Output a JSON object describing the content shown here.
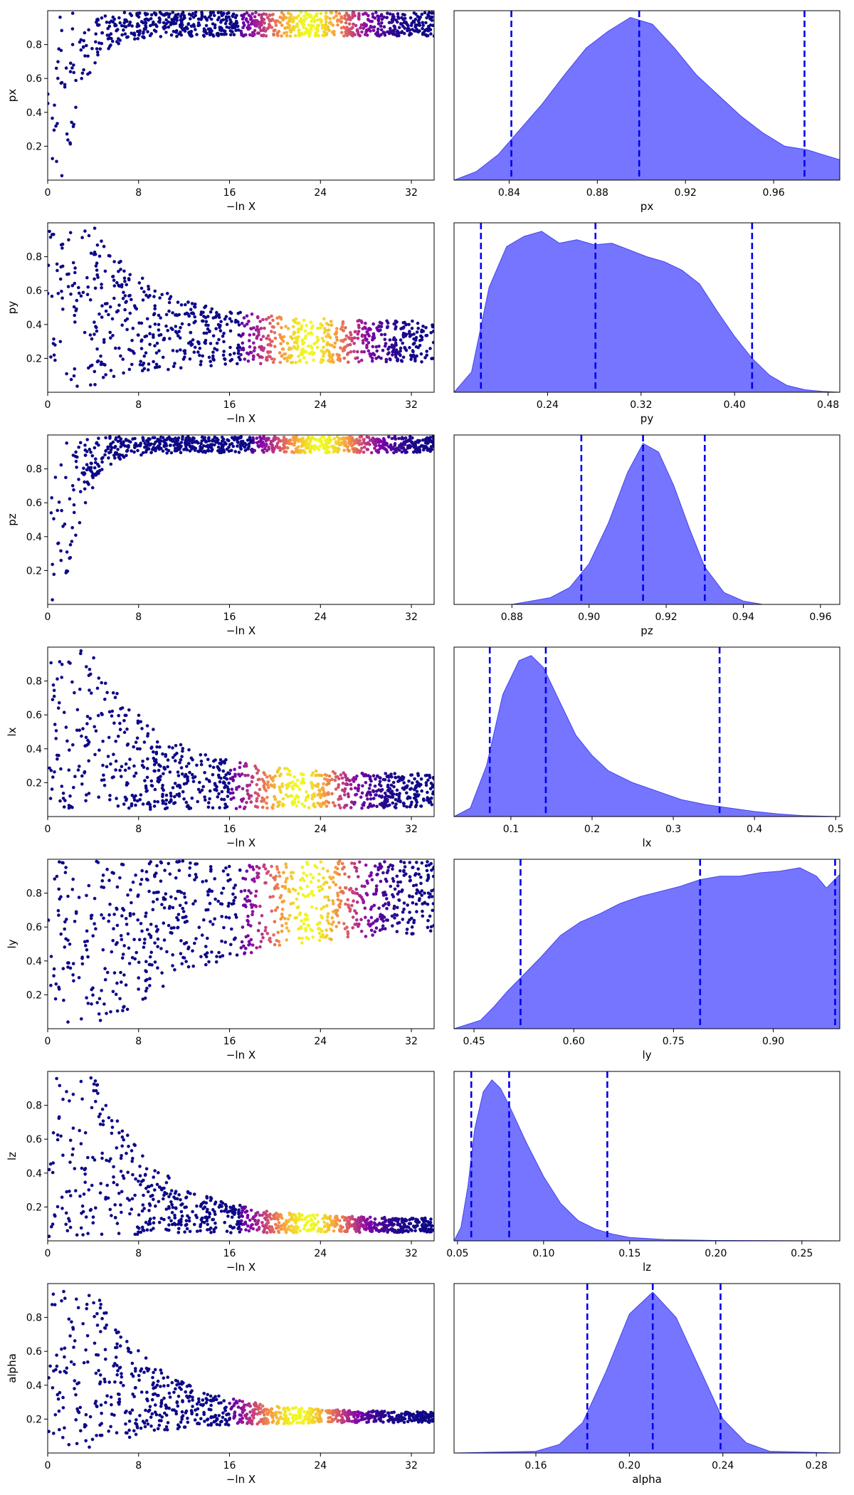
{
  "chart_data": [
    {
      "type": "scatter",
      "panel": "trace",
      "parameter": "px",
      "xlabel": "−ln X",
      "ylabel": "px",
      "xlim": [
        0,
        34
      ],
      "ylim": [
        0,
        1
      ],
      "xticks": [
        "0",
        "8",
        "16",
        "24",
        "32"
      ],
      "yticks": [
        "0.2",
        "0.4",
        "0.6",
        "0.8"
      ],
      "colormap": [
        "#0d0887",
        "#7e03a8",
        "#cc4778",
        "#f89540",
        "#f0f921"
      ],
      "peak_x": 23
    },
    {
      "type": "area",
      "panel": "posterior",
      "parameter": "px",
      "xlabel": "px",
      "xlim": [
        0.815,
        0.99
      ],
      "xticks": [
        "0.84",
        "0.88",
        "0.92",
        "0.96"
      ],
      "fill_color": "#6666ff",
      "quantile_color": "#0000ee",
      "quantiles": [
        0.841,
        0.899,
        0.974
      ],
      "x": [
        0.815,
        0.825,
        0.835,
        0.845,
        0.855,
        0.865,
        0.875,
        0.885,
        0.895,
        0.905,
        0.915,
        0.925,
        0.935,
        0.945,
        0.955,
        0.965,
        0.975,
        0.985,
        0.99
      ],
      "density": [
        0.0,
        0.05,
        0.15,
        0.3,
        0.45,
        0.62,
        0.78,
        0.88,
        0.96,
        0.92,
        0.78,
        0.62,
        0.5,
        0.38,
        0.28,
        0.2,
        0.18,
        0.14,
        0.12
      ]
    },
    {
      "type": "scatter",
      "panel": "trace",
      "parameter": "py",
      "xlabel": "−ln X",
      "ylabel": "py",
      "xlim": [
        0,
        34
      ],
      "ylim": [
        0,
        1
      ],
      "xticks": [
        "0",
        "8",
        "16",
        "24",
        "32"
      ],
      "yticks": [
        "0.2",
        "0.4",
        "0.6",
        "0.8"
      ],
      "peak_x": 23
    },
    {
      "type": "area",
      "panel": "posterior",
      "parameter": "py",
      "xlabel": "py",
      "xlim": [
        0.16,
        0.49
      ],
      "xticks": [
        "0.24",
        "0.32",
        "0.40",
        "0.48"
      ],
      "quantiles": [
        0.183,
        0.281,
        0.415
      ],
      "x": [
        0.16,
        0.175,
        0.19,
        0.205,
        0.22,
        0.235,
        0.25,
        0.265,
        0.28,
        0.295,
        0.31,
        0.325,
        0.34,
        0.355,
        0.37,
        0.385,
        0.4,
        0.415,
        0.43,
        0.445,
        0.46,
        0.475,
        0.49
      ],
      "density": [
        0.0,
        0.12,
        0.62,
        0.86,
        0.92,
        0.95,
        0.88,
        0.9,
        0.87,
        0.88,
        0.84,
        0.8,
        0.77,
        0.72,
        0.64,
        0.48,
        0.33,
        0.2,
        0.1,
        0.04,
        0.015,
        0.005,
        0.0
      ]
    },
    {
      "type": "scatter",
      "panel": "trace",
      "parameter": "pz",
      "xlabel": "−ln X",
      "ylabel": "pz",
      "xlim": [
        0,
        34
      ],
      "ylim": [
        0,
        1
      ],
      "xticks": [
        "0",
        "8",
        "16",
        "24",
        "32"
      ],
      "yticks": [
        "0.2",
        "0.4",
        "0.6",
        "0.8"
      ],
      "peak_x": 24
    },
    {
      "type": "area",
      "panel": "posterior",
      "parameter": "pz",
      "xlabel": "pz",
      "xlim": [
        0.865,
        0.965
      ],
      "xticks": [
        "0.88",
        "0.90",
        "0.92",
        "0.94",
        "0.96"
      ],
      "quantiles": [
        0.898,
        0.914,
        0.93
      ],
      "x": [
        0.865,
        0.88,
        0.89,
        0.895,
        0.9,
        0.905,
        0.91,
        0.914,
        0.918,
        0.922,
        0.926,
        0.93,
        0.935,
        0.94,
        0.945,
        0.965
      ],
      "density": [
        0.0,
        0.0,
        0.04,
        0.1,
        0.24,
        0.48,
        0.78,
        0.95,
        0.9,
        0.7,
        0.45,
        0.22,
        0.07,
        0.02,
        0.0,
        0.0
      ]
    },
    {
      "type": "scatter",
      "panel": "trace",
      "parameter": "lx",
      "xlabel": "−ln X",
      "ylabel": "lx",
      "xlim": [
        0,
        34
      ],
      "ylim": [
        0,
        1
      ],
      "xticks": [
        "0",
        "8",
        "16",
        "24",
        "32"
      ],
      "yticks": [
        "0.2",
        "0.4",
        "0.6",
        "0.8"
      ],
      "peak_x": 22
    },
    {
      "type": "area",
      "panel": "posterior",
      "parameter": "lx",
      "xlabel": "lx",
      "xlim": [
        0.03,
        0.505
      ],
      "xticks": [
        "0.1",
        "0.2",
        "0.3",
        "0.4",
        "0.5"
      ],
      "quantiles": [
        0.074,
        0.143,
        0.357
      ],
      "x": [
        0.03,
        0.05,
        0.07,
        0.09,
        0.11,
        0.125,
        0.14,
        0.16,
        0.18,
        0.2,
        0.22,
        0.25,
        0.28,
        0.31,
        0.34,
        0.37,
        0.4,
        0.43,
        0.46,
        0.505
      ],
      "density": [
        0.0,
        0.05,
        0.3,
        0.72,
        0.92,
        0.95,
        0.88,
        0.68,
        0.48,
        0.36,
        0.27,
        0.2,
        0.15,
        0.1,
        0.07,
        0.05,
        0.03,
        0.015,
        0.005,
        0.0
      ]
    },
    {
      "type": "scatter",
      "panel": "trace",
      "parameter": "ly",
      "xlabel": "−ln X",
      "ylabel": "ly",
      "xlim": [
        0,
        34
      ],
      "ylim": [
        0,
        1
      ],
      "xticks": [
        "0",
        "8",
        "16",
        "24",
        "32"
      ],
      "yticks": [
        "0.2",
        "0.4",
        "0.6",
        "0.8"
      ],
      "peak_x": 23
    },
    {
      "type": "area",
      "panel": "posterior",
      "parameter": "ly",
      "xlabel": "ly",
      "xlim": [
        0.42,
        1.0
      ],
      "xticks": [
        "0.45",
        "0.60",
        "0.75",
        "0.90"
      ],
      "quantiles": [
        0.52,
        0.79,
        0.993
      ],
      "x": [
        0.42,
        0.46,
        0.48,
        0.5,
        0.52,
        0.55,
        0.58,
        0.61,
        0.64,
        0.67,
        0.7,
        0.73,
        0.76,
        0.79,
        0.82,
        0.85,
        0.88,
        0.91,
        0.94,
        0.965,
        0.98,
        1.0
      ],
      "density": [
        0.0,
        0.05,
        0.13,
        0.22,
        0.3,
        0.42,
        0.55,
        0.63,
        0.68,
        0.74,
        0.78,
        0.81,
        0.84,
        0.88,
        0.9,
        0.9,
        0.92,
        0.93,
        0.95,
        0.9,
        0.83,
        0.91
      ]
    },
    {
      "type": "scatter",
      "panel": "trace",
      "parameter": "lz",
      "xlabel": "−ln X",
      "ylabel": "lz",
      "xlim": [
        0,
        34
      ],
      "ylim": [
        0,
        1
      ],
      "xticks": [
        "0",
        "8",
        "16",
        "24",
        "32"
      ],
      "yticks": [
        "0.2",
        "0.4",
        "0.6",
        "0.8"
      ],
      "peak_x": 23
    },
    {
      "type": "area",
      "panel": "posterior",
      "parameter": "lz",
      "xlabel": "lz",
      "xlim": [
        0.048,
        0.272
      ],
      "xticks": [
        "0.05",
        "0.10",
        "0.15",
        "0.20",
        "0.25"
      ],
      "quantiles": [
        0.058,
        0.08,
        0.137
      ],
      "x": [
        0.048,
        0.052,
        0.056,
        0.06,
        0.065,
        0.07,
        0.075,
        0.08,
        0.09,
        0.1,
        0.11,
        0.12,
        0.13,
        0.14,
        0.15,
        0.17,
        0.2,
        0.272
      ],
      "density": [
        0.0,
        0.08,
        0.32,
        0.66,
        0.88,
        0.95,
        0.9,
        0.8,
        0.58,
        0.38,
        0.22,
        0.12,
        0.07,
        0.04,
        0.02,
        0.008,
        0.002,
        0.0
      ]
    },
    {
      "type": "scatter",
      "panel": "trace",
      "parameter": "alpha",
      "xlabel": "−ln X",
      "ylabel": "alpha",
      "xlim": [
        0,
        34
      ],
      "ylim": [
        0,
        1
      ],
      "xticks": [
        "0",
        "8",
        "16",
        "24",
        "32"
      ],
      "yticks": [
        "0.2",
        "0.4",
        "0.6",
        "0.8"
      ],
      "peak_x": 22
    },
    {
      "type": "area",
      "panel": "posterior",
      "parameter": "alpha",
      "xlabel": "alpha",
      "xlim": [
        0.125,
        0.29
      ],
      "xticks": [
        "0.16",
        "0.20",
        "0.24",
        "0.28"
      ],
      "quantiles": [
        0.182,
        0.21,
        0.239
      ],
      "x": [
        0.125,
        0.16,
        0.17,
        0.18,
        0.19,
        0.2,
        0.21,
        0.22,
        0.23,
        0.24,
        0.25,
        0.26,
        0.29
      ],
      "density": [
        0.0,
        0.01,
        0.05,
        0.18,
        0.48,
        0.82,
        0.95,
        0.8,
        0.5,
        0.2,
        0.06,
        0.01,
        0.0
      ]
    }
  ]
}
